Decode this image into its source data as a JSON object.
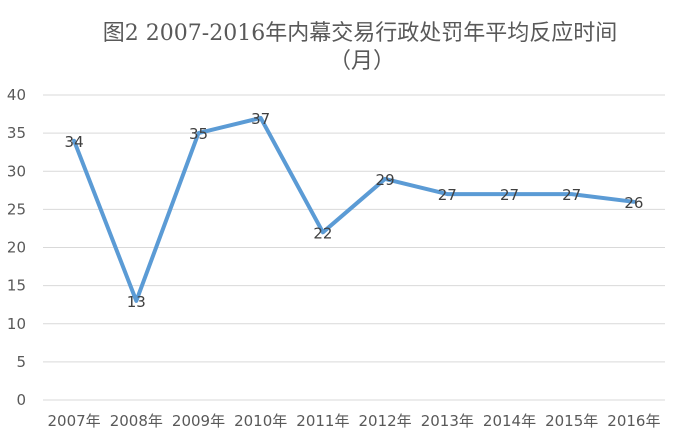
{
  "chart_data": {
    "type": "line",
    "title_line1": "图2 2007-2016年内幕交易行政处罚年平均反应时间",
    "title_line2": "（月）",
    "categories": [
      "2007年",
      "2008年",
      "2009年",
      "2010年",
      "2011年",
      "2012年",
      "2013年",
      "2014年",
      "2015年",
      "2016年"
    ],
    "series": [
      {
        "values": [
          34,
          13,
          35,
          37,
          22,
          29,
          27,
          27,
          27,
          26
        ]
      }
    ],
    "ylim": [
      0,
      40
    ],
    "yticks": [
      0,
      5,
      10,
      15,
      20,
      25,
      30,
      35,
      40
    ],
    "grid": true,
    "legend": "none",
    "colors": {
      "series": "#5b9bd5",
      "grid": "#d9d9d9",
      "text": "#595959"
    }
  }
}
